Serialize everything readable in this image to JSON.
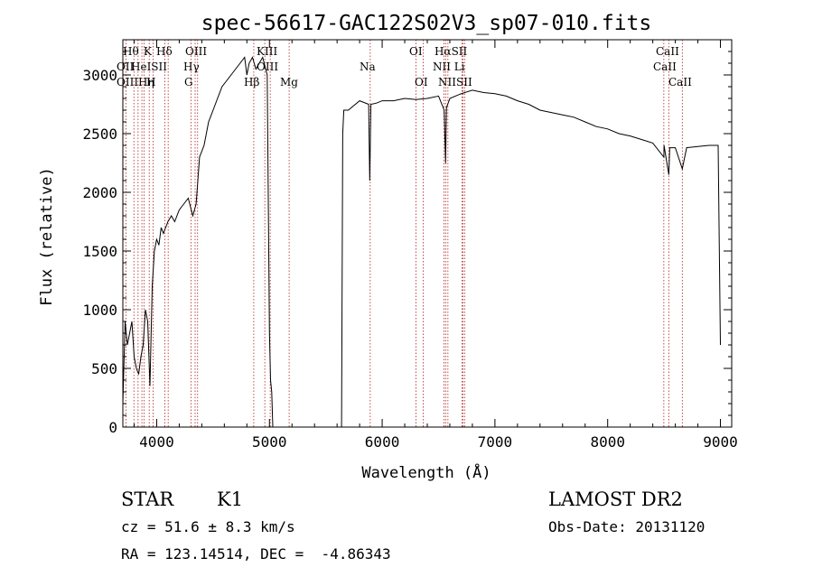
{
  "chart_data": {
    "type": "line",
    "title": "spec-56617-GAC122S02V3_sp07-010.fits",
    "xlabel": "Wavelength (Å)",
    "ylabel": "Flux (relative)",
    "xlim": [
      3700,
      9100
    ],
    "ylim": [
      0,
      3300
    ],
    "xticks": [
      4000,
      5000,
      6000,
      7000,
      8000,
      9000
    ],
    "yticks": [
      0,
      500,
      1000,
      1500,
      2000,
      2500,
      3000
    ],
    "grid": false,
    "series": [
      {
        "x": [
          3700,
          3720,
          3740,
          3760,
          3780,
          3800,
          3820,
          3840,
          3860,
          3880,
          3900,
          3920,
          3940,
          3960,
          3980,
          4000,
          4020,
          4040,
          4060,
          4080,
          4100,
          4130,
          4160,
          4200,
          4240,
          4280,
          4320,
          4350,
          4380,
          4420,
          4460,
          4500,
          4540,
          4580,
          4620,
          4660,
          4700,
          4740,
          4780,
          4800,
          4820,
          4850,
          4880,
          4910,
          4940,
          4980,
          5000,
          5010,
          5020,
          5030,
          5640,
          5650,
          5660,
          5700,
          5800,
          5880,
          5890,
          5900,
          5950,
          6000,
          6100,
          6200,
          6300,
          6400,
          6500,
          6550,
          6563,
          6570,
          6600,
          6700,
          6800,
          6900,
          7000,
          7100,
          7200,
          7300,
          7400,
          7500,
          7600,
          7700,
          7800,
          7900,
          8000,
          8100,
          8200,
          8300,
          8400,
          8498,
          8500,
          8542,
          8550,
          8600,
          8662,
          8700,
          8800,
          8900,
          8980,
          9000
        ],
        "y": [
          200,
          900,
          700,
          800,
          900,
          600,
          500,
          450,
          600,
          700,
          1000,
          900,
          350,
          1200,
          1500,
          1600,
          1550,
          1700,
          1650,
          1700,
          1750,
          1800,
          1750,
          1850,
          1900,
          1950,
          1800,
          1900,
          2300,
          2400,
          2600,
          2700,
          2800,
          2900,
          2950,
          3000,
          3050,
          3100,
          3150,
          3000,
          3100,
          3150,
          3050,
          3100,
          3150,
          3000,
          800,
          400,
          300,
          0,
          0,
          2500,
          2700,
          2700,
          2780,
          2750,
          2100,
          2750,
          2760,
          2780,
          2780,
          2800,
          2790,
          2800,
          2820,
          2700,
          2250,
          2720,
          2800,
          2840,
          2870,
          2850,
          2840,
          2820,
          2780,
          2750,
          2700,
          2680,
          2660,
          2640,
          2600,
          2560,
          2540,
          2500,
          2480,
          2450,
          2420,
          2300,
          2400,
          2150,
          2380,
          2380,
          2200,
          2380,
          2390,
          2400,
          2400,
          700
        ]
      }
    ],
    "lines": [
      {
        "lambda": 3727,
        "labels": [
          "OII"
        ]
      },
      {
        "lambda": 3798,
        "labels": [
          "Hθ"
        ]
      },
      {
        "lambda": 3835,
        "labels": [
          "Hη"
        ]
      },
      {
        "lambda": 3869,
        "labels": [
          "OIII"
        ]
      },
      {
        "lambda": 3889,
        "labels": [
          "HeI"
        ]
      },
      {
        "lambda": 3934,
        "labels": [
          "K"
        ]
      },
      {
        "lambda": 3969,
        "labels": [
          "H"
        ]
      },
      {
        "lambda": 4072,
        "labels": [
          "SII"
        ]
      },
      {
        "lambda": 4102,
        "labels": [
          "Hδ"
        ]
      },
      {
        "lambda": 4304,
        "labels": [
          "G"
        ]
      },
      {
        "lambda": 4341,
        "labels": [
          "Hγ"
        ]
      },
      {
        "lambda": 4363,
        "labels": [
          "OIII"
        ]
      },
      {
        "lambda": 4861,
        "labels": [
          "Hβ"
        ]
      },
      {
        "lambda": 4959,
        "labels": [
          "OIII"
        ]
      },
      {
        "lambda": 5007,
        "labels": [
          "OIII"
        ]
      },
      {
        "lambda": 5175,
        "labels": [
          "Mg"
        ]
      },
      {
        "lambda": 5894,
        "labels": [
          "Na"
        ]
      },
      {
        "lambda": 6300,
        "labels": [
          "OI"
        ]
      },
      {
        "lambda": 6364,
        "labels": [
          "OI"
        ]
      },
      {
        "lambda": 6548,
        "labels": [
          "NII"
        ]
      },
      {
        "lambda": 6563,
        "labels": [
          "Hα"
        ]
      },
      {
        "lambda": 6583,
        "labels": [
          "NII"
        ]
      },
      {
        "lambda": 6707,
        "labels": [
          "Li"
        ]
      },
      {
        "lambda": 6716,
        "labels": [
          "SII"
        ]
      },
      {
        "lambda": 6731,
        "labels": [
          "SII"
        ]
      },
      {
        "lambda": 8498,
        "labels": [
          "CaII"
        ]
      },
      {
        "lambda": 8542,
        "labels": [
          "CaII"
        ]
      },
      {
        "lambda": 8662,
        "labels": [
          "CaII"
        ]
      }
    ],
    "line_label_texts": {
      "row1": [
        "Hθ",
        "K",
        "Hδ",
        "OIII",
        "KIII",
        "OI",
        "HαSII",
        "CaII"
      ],
      "row2": [
        "OII",
        "HeISII",
        "Hγ",
        "OIII",
        "Na",
        "NII Li",
        "CaII"
      ],
      "row3": [
        "OIIIHη",
        "H",
        "G",
        "Hβ",
        "Mg",
        "OI",
        "NIISII",
        "CaII"
      ]
    }
  },
  "info": {
    "object_class": "STAR",
    "subclass": "K1",
    "survey": "LAMOST DR2",
    "cz": "cz = 51.6 ± 8.3 km/s",
    "obs_date": "Obs-Date: 20131120",
    "coords": "RA = 123.14514, DEC =  -4.86343"
  },
  "colors": {
    "spectrum": "#000000",
    "marker": "#b02020",
    "axis": "#000000"
  }
}
